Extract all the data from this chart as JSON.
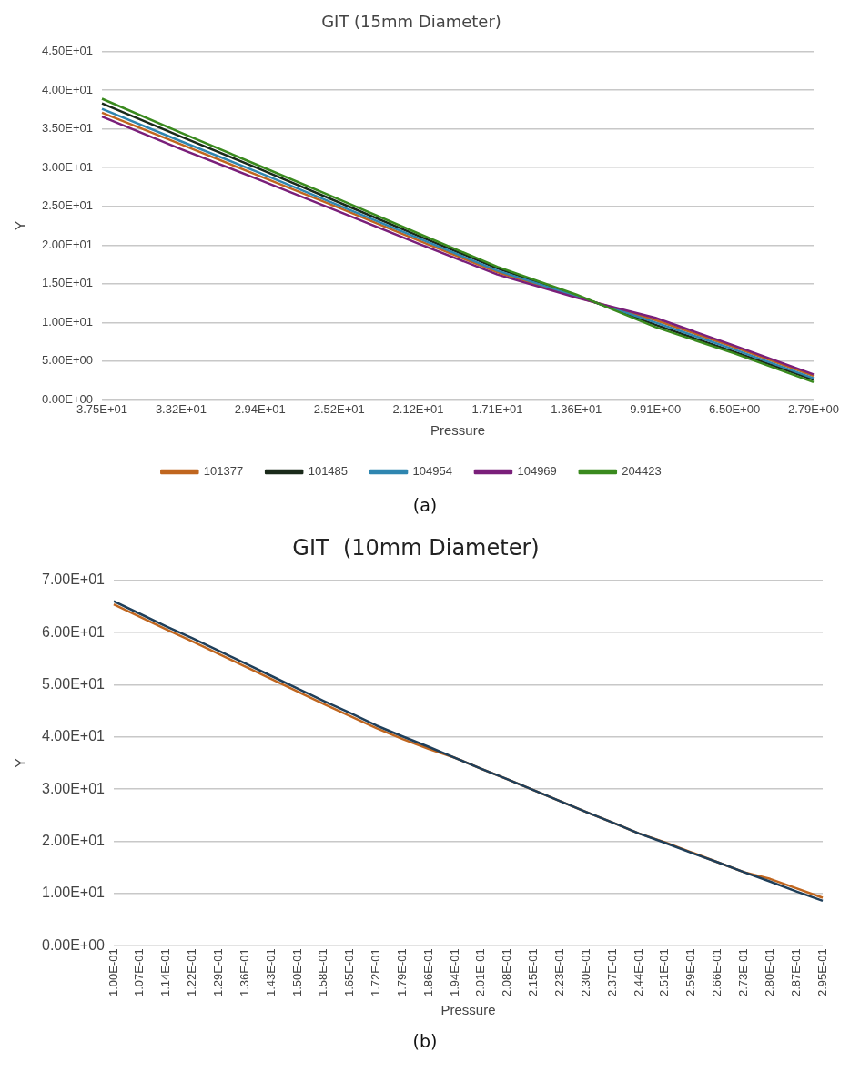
{
  "chart_data": [
    {
      "type": "line",
      "title": "GIT (15mm Diameter)",
      "xlabel": "Pressure",
      "ylabel": "Y",
      "categories": [
        "3.75E+01",
        "3.32E+01",
        "2.94E+01",
        "2.52E+01",
        "2.12E+01",
        "1.71E+01",
        "1.36E+01",
        "9.91E+00",
        "6.50E+00",
        "2.79E+00"
      ],
      "series": [
        {
          "name": "101377",
          "color": "#c0661f",
          "values": [
            37.1,
            33.0,
            28.9,
            24.8,
            20.6,
            16.5,
            13.3,
            10.3,
            6.8,
            3.1
          ]
        },
        {
          "name": "101485",
          "color": "#1a2a1a",
          "values": [
            38.3,
            34.0,
            29.8,
            25.5,
            21.2,
            17.0,
            13.5,
            9.7,
            6.2,
            2.6
          ]
        },
        {
          "name": "104954",
          "color": "#2f86b0",
          "values": [
            37.6,
            33.4,
            29.3,
            25.1,
            20.9,
            16.7,
            13.4,
            10.0,
            6.5,
            2.8
          ]
        },
        {
          "name": "104969",
          "color": "#7a1f7a",
          "values": [
            36.6,
            32.4,
            28.4,
            24.3,
            20.2,
            16.2,
            13.2,
            10.6,
            7.0,
            3.3
          ]
        },
        {
          "name": "204423",
          "color": "#3a8a1e",
          "values": [
            38.9,
            34.5,
            30.2,
            25.9,
            21.5,
            17.2,
            13.6,
            9.4,
            6.0,
            2.3
          ]
        }
      ],
      "ylim": [
        0,
        45
      ],
      "yticks": [
        {
          "value": 0,
          "label": "0.00E+00"
        },
        {
          "value": 5,
          "label": "5.00E+00"
        },
        {
          "value": 10,
          "label": "1.00E+01"
        },
        {
          "value": 15,
          "label": "1.50E+01"
        },
        {
          "value": 20,
          "label": "2.00E+01"
        },
        {
          "value": 25,
          "label": "2.50E+01"
        },
        {
          "value": 30,
          "label": "3.00E+01"
        },
        {
          "value": 35,
          "label": "3.50E+01"
        },
        {
          "value": 40,
          "label": "4.00E+01"
        },
        {
          "value": 45,
          "label": "4.50E+01"
        }
      ],
      "grid": "y",
      "legend": "bottom",
      "marker": "none",
      "annotations": [
        "(a)"
      ]
    },
    {
      "type": "line",
      "title": "GIT  (10mm Diameter)",
      "xlabel": "Pressure",
      "ylabel": "Y",
      "categories": [
        "1.00E-01",
        "1.07E-01",
        "1.14E-01",
        "1.22E-01",
        "1.29E-01",
        "1.36E-01",
        "1.43E-01",
        "1.50E-01",
        "1.58E-01",
        "1.65E-01",
        "1.72E-01",
        "1.79E-01",
        "1.86E-01",
        "1.94E-01",
        "2.01E-01",
        "2.08E-01",
        "2.15E-01",
        "2.23E-01",
        "2.30E-01",
        "2.37E-01",
        "2.44E-01",
        "2.51E-01",
        "2.59E-01",
        "2.66E-01",
        "2.73E-01",
        "2.80E-01",
        "2.87E-01",
        "2.95E-01"
      ],
      "series": [
        {
          "color": "#c0661f",
          "values": [
            65.4,
            63.0,
            60.6,
            58.3,
            55.9,
            53.5,
            51.1,
            48.7,
            46.3,
            44.0,
            41.7,
            39.6,
            37.7,
            36.0,
            33.9,
            31.9,
            29.8,
            27.7,
            25.6,
            23.6,
            21.5,
            19.8,
            17.9,
            16.0,
            14.1,
            12.8,
            11.0,
            9.2
          ]
        },
        {
          "color": "#1f3f5a",
          "values": [
            66.0,
            63.6,
            61.2,
            58.9,
            56.5,
            54.1,
            51.7,
            49.3,
            46.9,
            44.6,
            42.2,
            40.1,
            38.1,
            36.0,
            33.9,
            31.9,
            29.8,
            27.7,
            25.6,
            23.6,
            21.5,
            19.7,
            17.8,
            16.0,
            14.1,
            12.3,
            10.4,
            8.6
          ]
        }
      ],
      "ylim": [
        0,
        70
      ],
      "yticks": [
        {
          "value": 0,
          "label": "0.00E+00"
        },
        {
          "value": 10,
          "label": "1.00E+01"
        },
        {
          "value": 20,
          "label": "2.00E+01"
        },
        {
          "value": 30,
          "label": "3.00E+01"
        },
        {
          "value": 40,
          "label": "4.00E+01"
        },
        {
          "value": 50,
          "label": "5.00E+01"
        },
        {
          "value": 60,
          "label": "6.00E+01"
        },
        {
          "value": 70,
          "label": "7.00E+01"
        }
      ],
      "grid": "y",
      "marker": "none",
      "annotations": [
        "(b)"
      ]
    }
  ]
}
